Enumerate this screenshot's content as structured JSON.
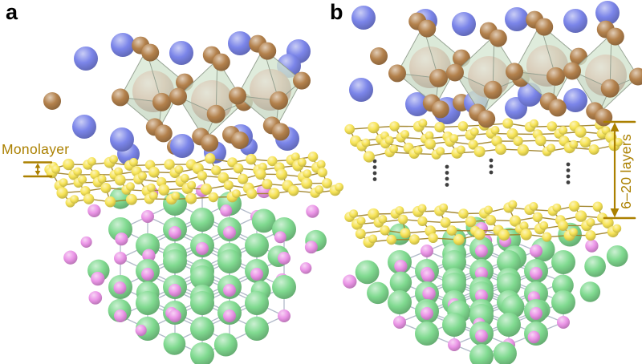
{
  "panels": {
    "a": {
      "label": "a",
      "annotations": {
        "monolayer": "Monolayer"
      }
    },
    "b": {
      "label": "b",
      "annotations": {
        "layers_range": "6–20 layers"
      }
    }
  },
  "colors": {
    "background": "#ffffff",
    "panel_label": "#000000",
    "annotation_gold": "#ab8000",
    "atom_blue": "#7b85e9",
    "atom_brown": "#b3814c",
    "atom_salmon": "#ddb2a0",
    "atom_yellow": "#f7e457",
    "atom_green": "#80da90",
    "atom_pink": "#eb95e7",
    "octahedron_green": "#d2e4cd",
    "bond_gold": "#a0842a",
    "bond_gray": "#a9b2c3",
    "ellipsis_dots": "#3f3f3f"
  }
}
